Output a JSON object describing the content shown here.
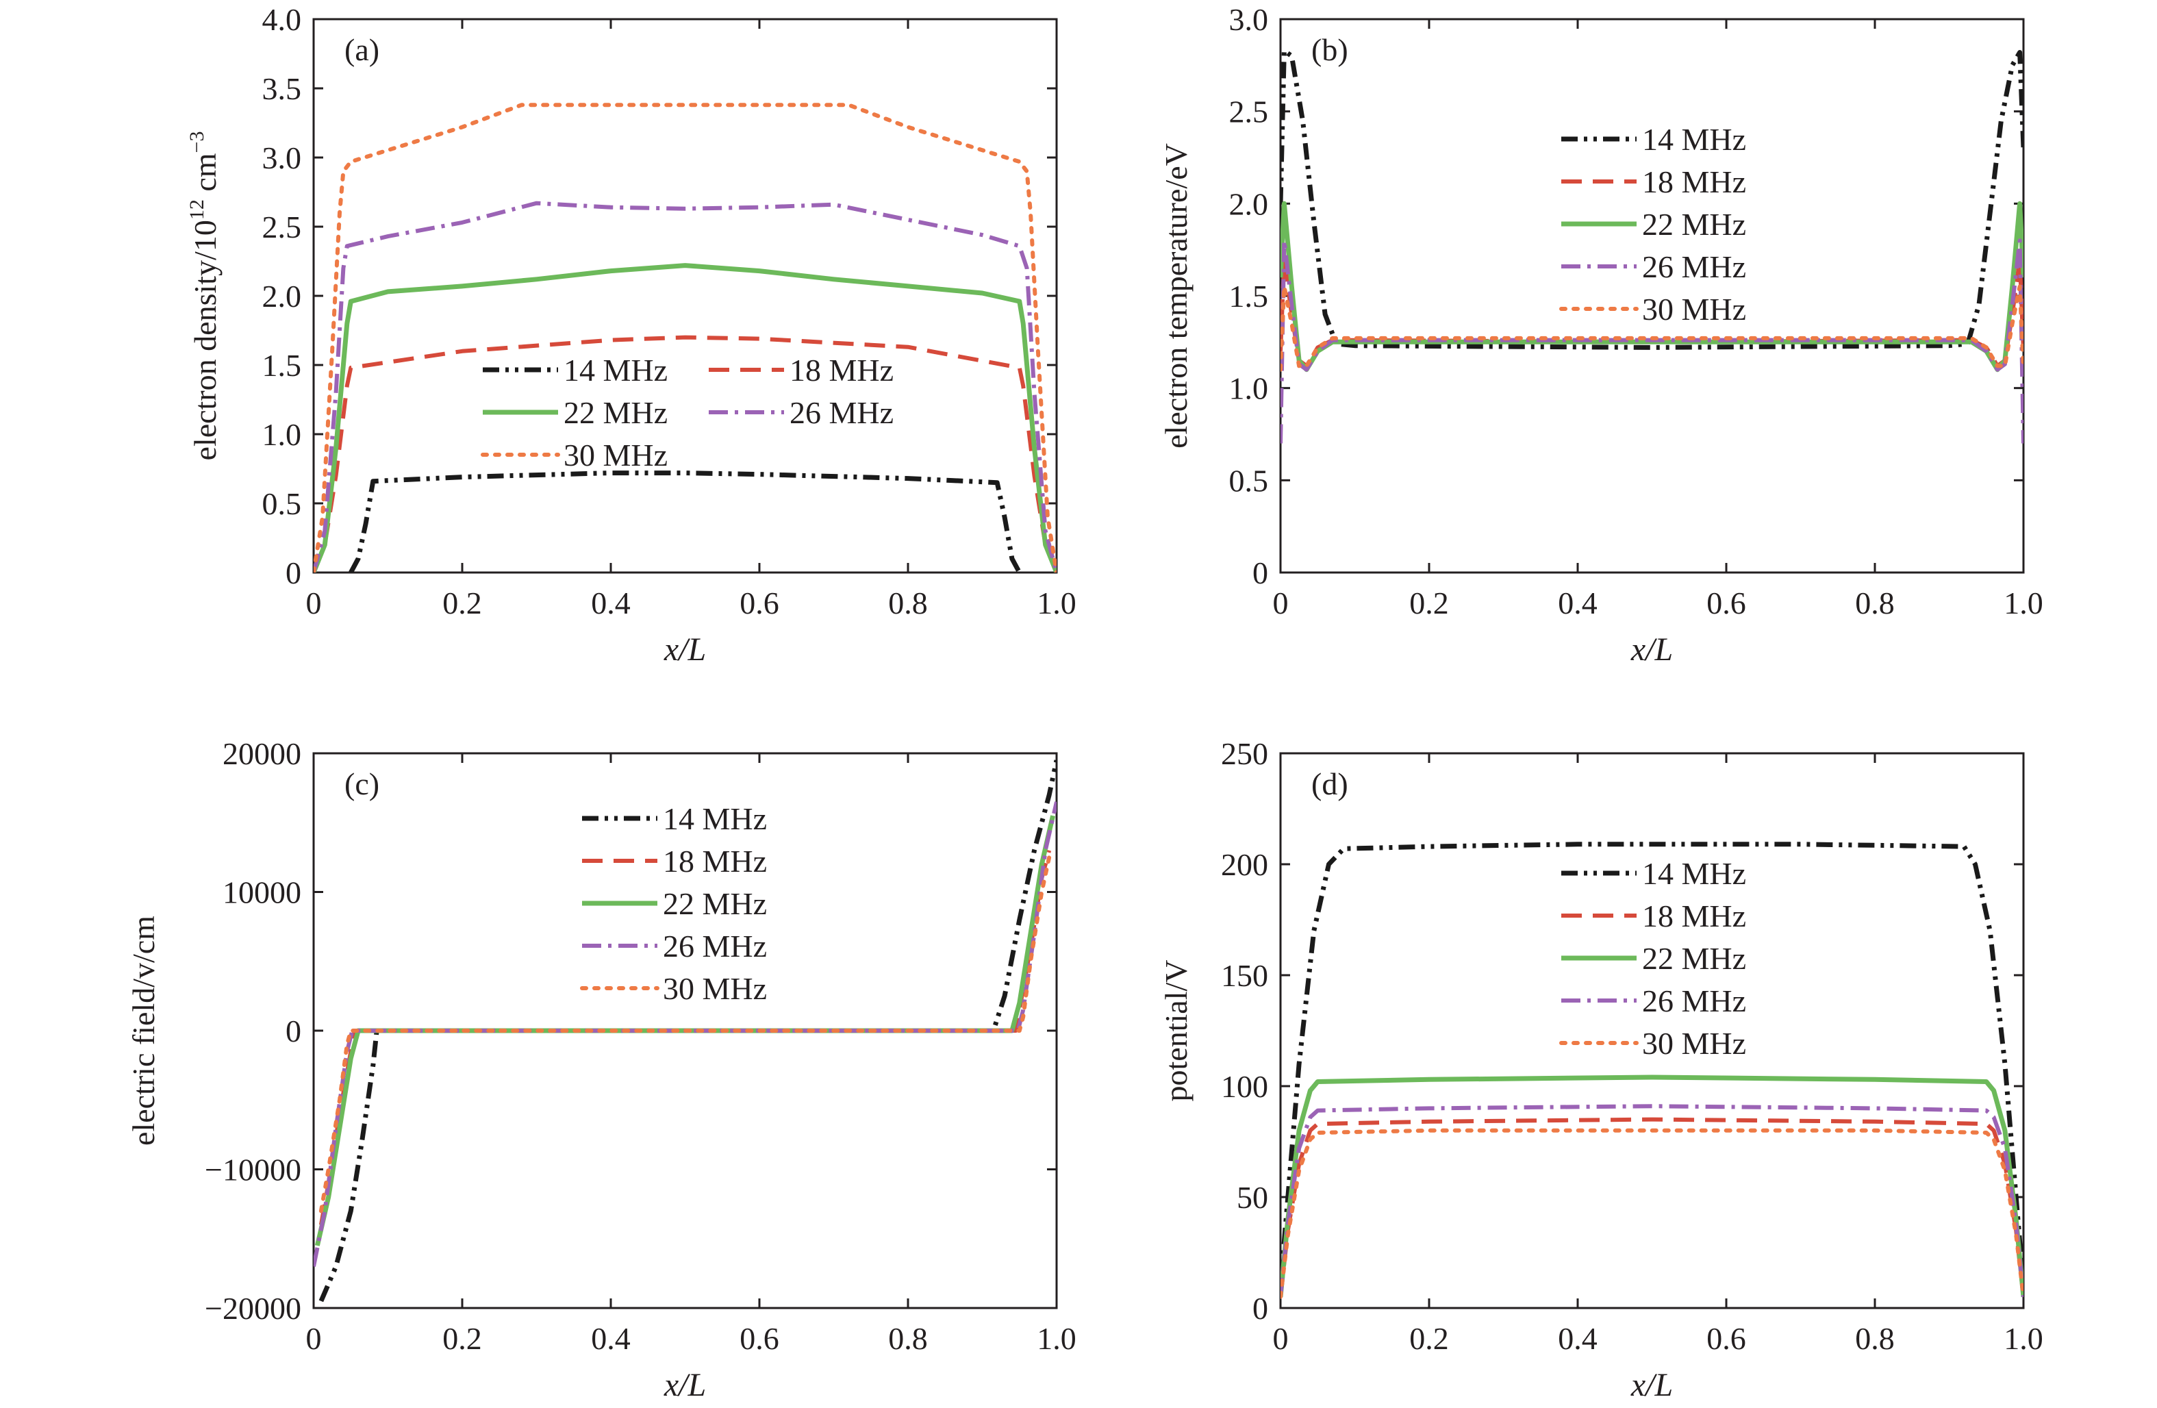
{
  "colors": {
    "14 MHz": "#1a1a1a",
    "18 MHz": "#d64a3a",
    "22 MHz": "#6cb95a",
    "26 MHz": "#9b63b5",
    "30 MHz": "#ee7a45",
    "axis": "#231f20"
  },
  "chart_data": [
    {
      "type": "line",
      "panel_label": "(a)",
      "xlabel": "x/L",
      "ylabel_main": "electron density/10",
      "ylabel_sup1": "12",
      "ylabel_unit": " cm",
      "ylabel_sup2": "−3",
      "xlim": [
        0,
        1.0
      ],
      "ylim": [
        0,
        4.0
      ],
      "xticks": [
        0,
        0.2,
        0.4,
        0.6,
        0.8,
        1.0
      ],
      "xtick_labels": [
        "0",
        "0.2",
        "0.4",
        "0.6",
        "0.8",
        "1.0"
      ],
      "yticks": [
        0,
        0.5,
        1.0,
        1.5,
        2.0,
        2.5,
        3.0,
        3.5,
        4.0
      ],
      "ytick_labels": [
        "0",
        "0.5",
        "1.0",
        "1.5",
        "2.0",
        "2.5",
        "3.0",
        "3.5",
        "4.0"
      ],
      "legend_columns": 2,
      "legend_placement": "lower-middle",
      "series": [
        {
          "name": "14 MHz",
          "style": "dashdotdot",
          "x": [
            0.05,
            0.06,
            0.07,
            0.08,
            0.2,
            0.4,
            0.5,
            0.6,
            0.8,
            0.92,
            0.93,
            0.94,
            0.95
          ],
          "y": [
            0,
            0.1,
            0.35,
            0.66,
            0.69,
            0.72,
            0.72,
            0.71,
            0.68,
            0.65,
            0.4,
            0.1,
            0
          ]
        },
        {
          "name": "18 MHz",
          "style": "dashed",
          "x": [
            0,
            0.015,
            0.03,
            0.045,
            0.05,
            0.2,
            0.4,
            0.5,
            0.6,
            0.8,
            0.95,
            0.955,
            0.97,
            0.985,
            1.0
          ],
          "y": [
            0,
            0.2,
            0.7,
            1.35,
            1.48,
            1.6,
            1.68,
            1.7,
            1.69,
            1.63,
            1.48,
            1.35,
            0.7,
            0.2,
            0
          ]
        },
        {
          "name": "22 MHz",
          "style": "solid",
          "x": [
            0,
            0.015,
            0.03,
            0.045,
            0.05,
            0.1,
            0.2,
            0.3,
            0.4,
            0.5,
            0.6,
            0.7,
            0.8,
            0.9,
            0.95,
            0.955,
            0.97,
            0.985,
            1.0
          ],
          "y": [
            0,
            0.2,
            0.9,
            1.8,
            1.96,
            2.03,
            2.07,
            2.12,
            2.18,
            2.22,
            2.18,
            2.12,
            2.07,
            2.02,
            1.96,
            1.8,
            0.9,
            0.2,
            0
          ]
        },
        {
          "name": "26 MHz",
          "style": "dashdot",
          "x": [
            0,
            0.015,
            0.03,
            0.04,
            0.045,
            0.1,
            0.2,
            0.3,
            0.4,
            0.5,
            0.6,
            0.7,
            0.8,
            0.9,
            0.95,
            0.96,
            0.97,
            0.985,
            1.0
          ],
          "y": [
            0,
            0.3,
            1.3,
            2.2,
            2.36,
            2.43,
            2.53,
            2.67,
            2.64,
            2.63,
            2.64,
            2.66,
            2.55,
            2.44,
            2.36,
            2.2,
            1.3,
            0.3,
            0
          ]
        },
        {
          "name": "30 MHz",
          "style": "dotted",
          "x": [
            0,
            0.012,
            0.025,
            0.035,
            0.04,
            0.05,
            0.2,
            0.28,
            0.4,
            0.5,
            0.6,
            0.72,
            0.8,
            0.95,
            0.96,
            0.965,
            0.975,
            0.988,
            1.0
          ],
          "y": [
            0,
            0.4,
            1.6,
            2.6,
            2.9,
            2.97,
            3.22,
            3.38,
            3.38,
            3.38,
            3.38,
            3.38,
            3.22,
            2.97,
            2.9,
            2.6,
            1.6,
            0.4,
            0
          ]
        }
      ]
    },
    {
      "type": "line",
      "panel_label": "(b)",
      "xlabel": "x/L",
      "ylabel": "electron temperature/eV",
      "xlim": [
        0,
        1.0
      ],
      "ylim": [
        0,
        3.0
      ],
      "xticks": [
        0,
        0.2,
        0.4,
        0.6,
        0.8,
        1.0
      ],
      "xtick_labels": [
        "0",
        "0.2",
        "0.4",
        "0.6",
        "0.8",
        "1.0"
      ],
      "yticks": [
        0,
        0.5,
        1.0,
        1.5,
        2.0,
        2.5,
        3.0
      ],
      "ytick_labels": [
        "0",
        "0.5",
        "1.0",
        "1.5",
        "2.0",
        "2.5",
        "3.0"
      ],
      "legend_columns": 1,
      "legend_placement": "top-middle",
      "series": [
        {
          "name": "14 MHz",
          "style": "dashdotdot",
          "x": [
            0,
            0.005,
            0.015,
            0.03,
            0.045,
            0.06,
            0.075,
            0.1,
            0.5,
            0.9,
            0.925,
            0.94,
            0.955,
            0.97,
            0.985,
            0.995,
            1.0
          ],
          "y": [
            2.0,
            2.83,
            2.8,
            2.45,
            1.9,
            1.4,
            1.24,
            1.23,
            1.22,
            1.23,
            1.24,
            1.45,
            1.95,
            2.45,
            2.75,
            2.82,
            2.3
          ]
        },
        {
          "name": "18 MHz",
          "style": "dashed",
          "x": [
            0,
            0.005,
            0.015,
            0.025,
            0.035,
            0.05,
            0.07,
            0.5,
            0.93,
            0.95,
            0.965,
            0.975,
            0.985,
            0.995,
            1.0
          ],
          "y": [
            1.2,
            1.7,
            1.4,
            1.15,
            1.12,
            1.22,
            1.26,
            1.25,
            1.26,
            1.22,
            1.12,
            1.15,
            1.4,
            1.7,
            1.2
          ]
        },
        {
          "name": "22 MHz",
          "style": "solid",
          "x": [
            0,
            0.005,
            0.015,
            0.025,
            0.035,
            0.05,
            0.07,
            0.5,
            0.93,
            0.95,
            0.965,
            0.975,
            0.985,
            0.995,
            1.0
          ],
          "y": [
            1.6,
            2.0,
            1.55,
            1.15,
            1.1,
            1.2,
            1.25,
            1.25,
            1.25,
            1.2,
            1.1,
            1.15,
            1.55,
            2.0,
            1.6
          ]
        },
        {
          "name": "26 MHz",
          "style": "dashdot",
          "x": [
            0,
            0.005,
            0.015,
            0.025,
            0.035,
            0.05,
            0.07,
            0.5,
            0.93,
            0.95,
            0.965,
            0.975,
            0.985,
            0.995,
            1.0
          ],
          "y": [
            0.7,
            1.8,
            1.45,
            1.13,
            1.1,
            1.2,
            1.26,
            1.26,
            1.26,
            1.2,
            1.1,
            1.13,
            1.45,
            1.8,
            0.7
          ]
        },
        {
          "name": "30 MHz",
          "style": "dotted",
          "x": [
            0,
            0.005,
            0.015,
            0.025,
            0.035,
            0.05,
            0.07,
            0.5,
            0.93,
            0.95,
            0.965,
            0.975,
            0.985,
            0.995,
            1.0
          ],
          "y": [
            1.1,
            1.55,
            1.35,
            1.12,
            1.12,
            1.22,
            1.27,
            1.27,
            1.27,
            1.22,
            1.12,
            1.12,
            1.35,
            1.55,
            1.1
          ]
        }
      ]
    },
    {
      "type": "line",
      "panel_label": "(c)",
      "xlabel": "x/L",
      "ylabel": "electric field/v/cm",
      "xlim": [
        0,
        1.0
      ],
      "ylim": [
        -20000,
        20000
      ],
      "xticks": [
        0,
        0.2,
        0.4,
        0.6,
        0.8,
        1.0
      ],
      "xtick_labels": [
        "0",
        "0.2",
        "0.4",
        "0.6",
        "0.8",
        "1.0"
      ],
      "yticks": [
        -20000,
        -10000,
        0,
        10000,
        20000
      ],
      "ytick_labels": [
        "−20000",
        "−10000",
        "0",
        "10000",
        "20000"
      ],
      "legend_columns": 1,
      "legend_placement": "top-middle",
      "series": [
        {
          "name": "14 MHz",
          "style": "dashdotdot",
          "x": [
            0.01,
            0.03,
            0.05,
            0.065,
            0.08,
            0.085,
            0.9,
            0.915,
            0.93,
            0.95,
            0.97,
            0.99,
            1.0
          ],
          "y": [
            -19500,
            -17000,
            -13000,
            -8000,
            -2500,
            0,
            0,
            0,
            2500,
            8000,
            13000,
            17000,
            19500
          ]
        },
        {
          "name": "18 MHz",
          "style": "dashed",
          "x": [
            0.01,
            0.02,
            0.035,
            0.05,
            0.055,
            0.945,
            0.95,
            0.965,
            0.98,
            0.99
          ],
          "y": [
            -14000,
            -11000,
            -6000,
            -1500,
            0,
            0,
            1500,
            6000,
            11000,
            13000
          ]
        },
        {
          "name": "22 MHz",
          "style": "solid",
          "x": [
            0.005,
            0.02,
            0.035,
            0.05,
            0.06,
            0.94,
            0.95,
            0.965,
            0.98,
            0.995
          ],
          "y": [
            -15500,
            -12000,
            -7000,
            -2000,
            0,
            0,
            2000,
            7000,
            12000,
            15500
          ]
        },
        {
          "name": "26 MHz",
          "style": "dashdot",
          "x": [
            0.0,
            0.015,
            0.03,
            0.045,
            0.052,
            0.948,
            0.955,
            0.97,
            0.985,
            1.0
          ],
          "y": [
            -17000,
            -13000,
            -7000,
            -1500,
            0,
            0,
            1500,
            7000,
            13000,
            16500
          ]
        },
        {
          "name": "30 MHz",
          "style": "dotted",
          "x": [
            0.01,
            0.02,
            0.035,
            0.045,
            0.05,
            0.95,
            0.955,
            0.965,
            0.98,
            0.99
          ],
          "y": [
            -13000,
            -10000,
            -5000,
            -1000,
            0,
            0,
            1000,
            5000,
            10000,
            12500
          ]
        }
      ]
    },
    {
      "type": "line",
      "panel_label": "(d)",
      "xlabel": "x/L",
      "ylabel": "potential/V",
      "xlim": [
        0,
        1.0
      ],
      "ylim": [
        0,
        250
      ],
      "xticks": [
        0,
        0.2,
        0.4,
        0.6,
        0.8,
        1.0
      ],
      "xtick_labels": [
        "0",
        "0.2",
        "0.4",
        "0.6",
        "0.8",
        "1.0"
      ],
      "yticks": [
        0,
        50,
        100,
        150,
        200,
        250
      ],
      "ytick_labels": [
        "0",
        "50",
        "100",
        "150",
        "200",
        "250"
      ],
      "legend_columns": 1,
      "legend_placement": "top-middle",
      "series": [
        {
          "name": "14 MHz",
          "style": "dashdotdot",
          "x": [
            0,
            0.01,
            0.025,
            0.045,
            0.065,
            0.085,
            0.2,
            0.4,
            0.5,
            0.7,
            0.92,
            0.935,
            0.955,
            0.975,
            0.99,
            1.0
          ],
          "y": [
            10,
            50,
            110,
            170,
            200,
            207,
            208,
            209,
            209,
            209,
            208,
            200,
            170,
            110,
            50,
            10
          ]
        },
        {
          "name": "18 MHz",
          "style": "dashed",
          "x": [
            0,
            0.01,
            0.025,
            0.04,
            0.05,
            0.2,
            0.5,
            0.8,
            0.95,
            0.96,
            0.975,
            0.99,
            1.0
          ],
          "y": [
            5,
            35,
            65,
            80,
            83,
            84,
            85,
            84,
            83,
            80,
            65,
            35,
            5
          ]
        },
        {
          "name": "22 MHz",
          "style": "solid",
          "x": [
            0,
            0.01,
            0.025,
            0.04,
            0.05,
            0.2,
            0.5,
            0.8,
            0.95,
            0.96,
            0.975,
            0.99,
            1.0
          ],
          "y": [
            5,
            40,
            80,
            98,
            102,
            103,
            104,
            103,
            102,
            98,
            80,
            40,
            5
          ]
        },
        {
          "name": "26 MHz",
          "style": "dashdot",
          "x": [
            0,
            0.01,
            0.025,
            0.04,
            0.05,
            0.2,
            0.5,
            0.8,
            0.95,
            0.96,
            0.975,
            0.99,
            1.0
          ],
          "y": [
            5,
            38,
            72,
            86,
            89,
            90,
            91,
            90,
            89,
            86,
            72,
            38,
            5
          ]
        },
        {
          "name": "30 MHz",
          "style": "dotted",
          "x": [
            0,
            0.01,
            0.025,
            0.04,
            0.05,
            0.2,
            0.5,
            0.8,
            0.95,
            0.96,
            0.975,
            0.99,
            1.0
          ],
          "y": [
            5,
            33,
            62,
            76,
            79,
            80,
            80,
            80,
            79,
            76,
            62,
            33,
            5
          ]
        }
      ]
    }
  ]
}
